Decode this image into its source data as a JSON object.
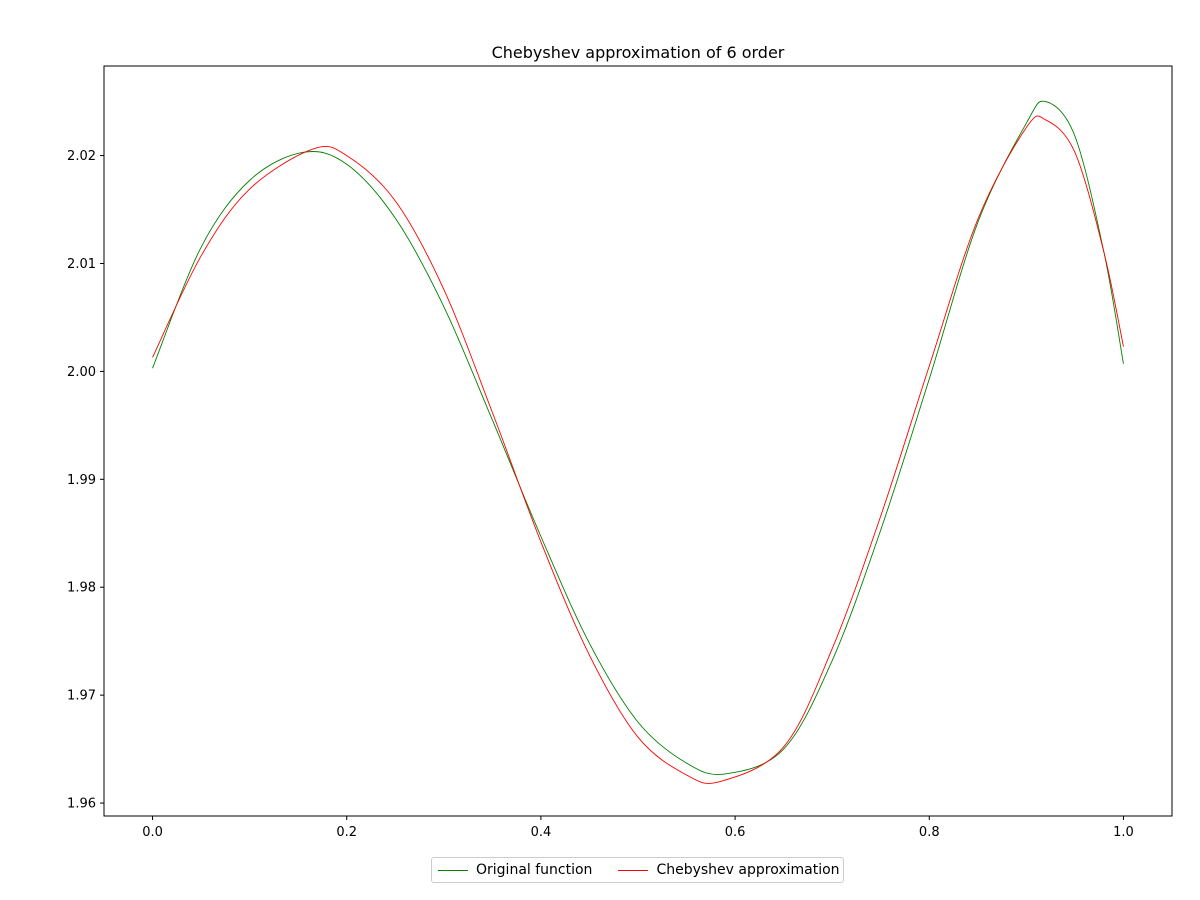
{
  "chart_data": {
    "type": "line",
    "title": "Chebyshev approximation of 6 order",
    "xlabel": "",
    "ylabel": "",
    "xlim": [
      -0.05,
      1.05
    ],
    "ylim": [
      1.9588,
      2.0283
    ],
    "xticks": [
      0.0,
      0.2,
      0.4,
      0.6,
      0.8,
      1.0
    ],
    "xtick_labels": [
      "0.0",
      "0.2",
      "0.4",
      "0.6",
      "0.8",
      "1.0"
    ],
    "yticks": [
      1.96,
      1.97,
      1.98,
      1.99,
      2.0,
      2.01,
      2.02
    ],
    "ytick_labels": [
      "1.96",
      "1.97",
      "1.98",
      "1.99",
      "2.00",
      "2.01",
      "2.02"
    ],
    "grid": false,
    "legend_position": "bottom-center",
    "series": [
      {
        "name": "Original function",
        "color": "#008000",
        "x": [
          0.0,
          0.05,
          0.1,
          0.155,
          0.2,
          0.25,
          0.3,
          0.35,
          0.4,
          0.45,
          0.5,
          0.55,
          0.59,
          0.65,
          0.7,
          0.75,
          0.8,
          0.85,
          0.9,
          0.92,
          0.95,
          0.98,
          1.0
        ],
        "y": [
          2.0003,
          2.0115,
          2.0177,
          2.0203,
          2.0192,
          2.0142,
          2.006,
          1.9955,
          1.9847,
          1.9748,
          1.9675,
          1.9637,
          1.9627,
          1.965,
          1.9732,
          1.9853,
          1.9993,
          2.0138,
          2.023,
          2.025,
          2.0218,
          2.011,
          2.0007
        ]
      },
      {
        "name": "Chebyshev approximation",
        "color": "#ff0000",
        "x": [
          0.0,
          0.05,
          0.1,
          0.165,
          0.2,
          0.25,
          0.3,
          0.35,
          0.4,
          0.45,
          0.5,
          0.55,
          0.585,
          0.65,
          0.7,
          0.75,
          0.8,
          0.85,
          0.9,
          0.92,
          0.95,
          0.98,
          1.0
        ],
        "y": [
          2.0013,
          2.0107,
          2.0169,
          2.0206,
          2.02,
          2.0158,
          2.0076,
          1.9962,
          1.9842,
          1.9737,
          1.9661,
          1.9626,
          1.962,
          1.9652,
          1.9743,
          1.9866,
          2.0005,
          2.0141,
          2.0226,
          2.0233,
          2.0203,
          2.011,
          2.0023
        ]
      }
    ]
  }
}
